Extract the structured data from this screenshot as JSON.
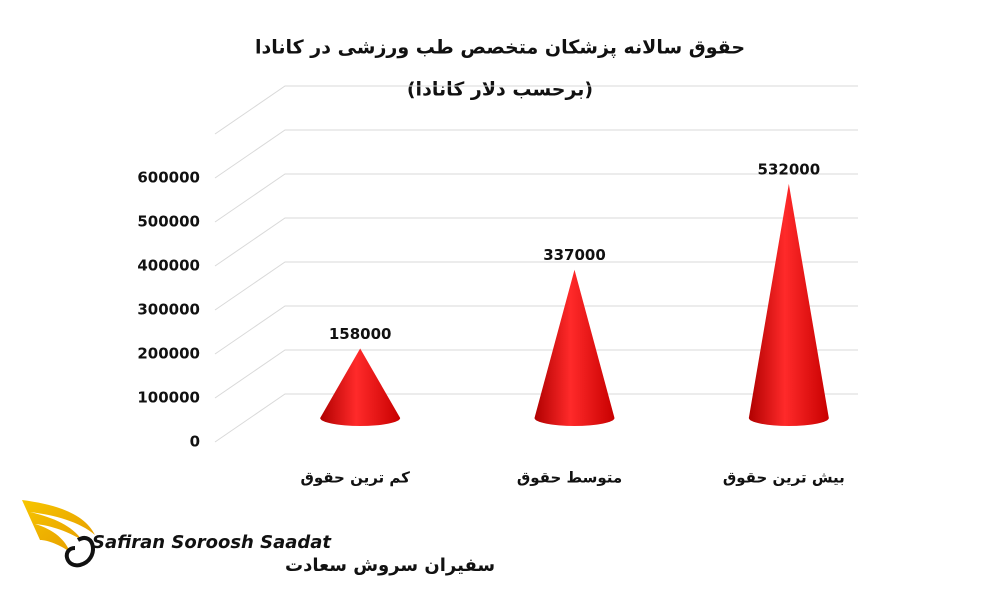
{
  "chart_data": {
    "type": "cone",
    "title": "حقوق سالانه پزشکان متخصص طب ورزشی در کانادا",
    "subtitle": "(برحسب دلار کانادا)",
    "categories": [
      "کم ترین حقوق",
      "متوسط حقوق",
      "بیش ترین حقوق"
    ],
    "values": [
      158000,
      337000,
      532000
    ],
    "color": "#e00000",
    "ylim": [
      0,
      700000
    ],
    "yticks": [
      0,
      100000,
      200000,
      300000,
      400000,
      500000,
      600000
    ],
    "grid": true
  },
  "logo": {
    "text": "Safiran Soroosh Saadat",
    "text_fa": "سفیران سروش سعادت"
  }
}
